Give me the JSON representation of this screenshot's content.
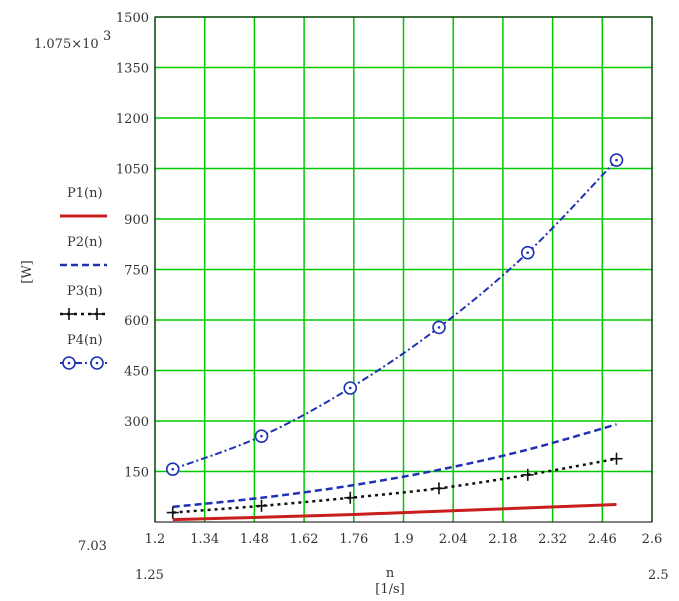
{
  "chart_data": {
    "type": "line",
    "xlabel": "n",
    "xlabel_unit": "[1/s]",
    "ylabel": "[W]",
    "xlim": [
      1.2,
      2.6
    ],
    "ylim": [
      0,
      1500
    ],
    "x_ticks": [
      "1.2",
      "1.34",
      "1.48",
      "1.62",
      "1.76",
      "1.9",
      "2.04",
      "2.18",
      "2.32",
      "2.46",
      "2.6"
    ],
    "y_ticks": [
      "150",
      "300",
      "450",
      "600",
      "750",
      "900",
      "1050",
      "1200",
      "1350",
      "1500"
    ],
    "x_range_min_label": "1.25",
    "x_range_max_label": "2.5",
    "y_range_min_label": "7.03",
    "y_range_max_label": "1.075×10",
    "y_range_max_exponent": "3",
    "grid": true,
    "grid_color": "#00c800",
    "legend_position": "left",
    "x": [
      1.25,
      1.5,
      1.75,
      2.0,
      2.25,
      2.5
    ],
    "series": [
      {
        "name": "P1(n)",
        "color": "#c81e1e",
        "style": "solid",
        "marker": "none",
        "values": [
          7.03,
          14,
          22,
          32,
          42,
          52
        ]
      },
      {
        "name": "P2(n)",
        "color": "#1e32b4",
        "style": "dashed",
        "marker": "none",
        "values": [
          45,
          72,
          108,
          155,
          215,
          290
        ]
      },
      {
        "name": "P3(n)",
        "color": "#111111",
        "style": "dotted",
        "marker": "plus",
        "values": [
          28,
          48,
          72,
          100,
          140,
          188
        ]
      },
      {
        "name": "P4(n)",
        "color": "#1e32b4",
        "style": "dash-dot",
        "marker": "circle",
        "values": [
          157,
          255,
          398,
          578,
          800,
          1075
        ]
      }
    ]
  }
}
